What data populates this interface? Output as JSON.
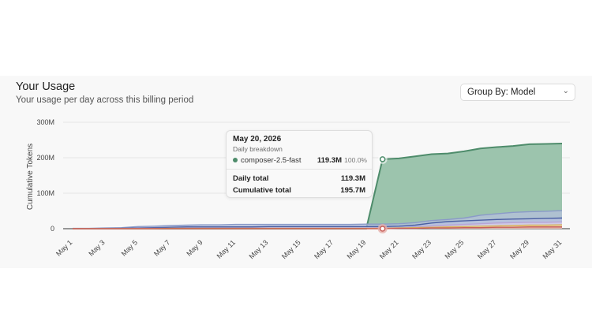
{
  "header": {
    "title": "Your Usage",
    "subtitle": "Your usage per day across this billing period"
  },
  "group_by": {
    "label": "Group By: Model"
  },
  "tooltip": {
    "date": "May 20, 2026",
    "subtitle": "Daily breakdown",
    "model": "composer-2.5-fast",
    "model_value": "119.3M",
    "model_pct": "100.0%",
    "daily_total_label": "Daily total",
    "daily_total_value": "119.3M",
    "cumulative_total_label": "Cumulative total",
    "cumulative_total_value": "195.7M"
  },
  "colors": {
    "composer": "#4e8c6b",
    "composer_fill": "#9cc4ad",
    "grid": "#e6e6e6"
  },
  "chart_data": {
    "type": "area",
    "title": "",
    "ylabel": "Cumulative Tokens",
    "xlabel": "",
    "ylim": [
      0,
      300
    ],
    "y_ticks": [
      0,
      100,
      200,
      300
    ],
    "y_tick_labels": [
      "0",
      "100M",
      "200M",
      "300M"
    ],
    "categories": [
      "May 1",
      "May 2",
      "May 3",
      "May 4",
      "May 5",
      "May 6",
      "May 7",
      "May 8",
      "May 9",
      "May 10",
      "May 11",
      "May 12",
      "May 13",
      "May 14",
      "May 15",
      "May 16",
      "May 17",
      "May 18",
      "May 19",
      "May 20",
      "May 21",
      "May 22",
      "May 23",
      "May 24",
      "May 25",
      "May 26",
      "May 27",
      "May 28",
      "May 29",
      "May 30",
      "May 31"
    ],
    "x_tick_labels": [
      "May 1",
      "May 3",
      "May 5",
      "May 7",
      "May 9",
      "May 11",
      "May 13",
      "May 15",
      "May 17",
      "May 19",
      "May 21",
      "May 23",
      "May 25",
      "May 27",
      "May 29",
      "May 31"
    ],
    "highlight_index": 19,
    "series": [
      {
        "name": "composer-2.5-fast",
        "color": "#4e8c6b",
        "fill": "#9cc4ad",
        "values": [
          0,
          0,
          0,
          0,
          0,
          0,
          0,
          0,
          0,
          0,
          0,
          0,
          0,
          0,
          0,
          0,
          0,
          0,
          0,
          195.7,
          198,
          204,
          210,
          212,
          218,
          226,
          230,
          233,
          238,
          239,
          240
        ]
      },
      {
        "values": [
          1,
          1,
          2,
          3,
          6,
          7,
          9,
          10,
          11,
          11,
          12,
          12,
          12,
          12,
          12,
          12,
          12,
          12,
          13,
          13,
          14,
          17,
          23,
          26,
          30,
          38,
          42,
          46,
          48,
          49,
          51
        ],
        "color": "#8a9ac8",
        "fill": "#b5c0dd"
      },
      {
        "values": [
          0,
          0,
          0,
          1,
          2,
          3,
          4,
          5,
          5,
          5,
          5,
          5,
          6,
          6,
          6,
          6,
          6,
          6,
          6,
          6,
          7,
          10,
          16,
          20,
          22,
          24,
          26,
          27,
          28,
          29,
          30
        ],
        "color": "#4a5fa3",
        "fill": "#b9c1e0"
      },
      {
        "values": [
          0,
          0,
          0,
          0,
          1,
          1,
          1,
          2,
          2,
          2,
          2,
          2,
          2,
          2,
          2,
          2,
          2,
          2,
          2,
          3,
          3,
          5,
          8,
          10,
          12,
          14,
          16,
          17,
          18,
          18,
          19
        ],
        "color": "#b7a4d6",
        "fill": "#d7cdea"
      },
      {
        "values": [
          0,
          0,
          0,
          0,
          0,
          0,
          1,
          1,
          1,
          1,
          1,
          1,
          1,
          1,
          1,
          1,
          1,
          1,
          1,
          1,
          2,
          3,
          4,
          5,
          6,
          7,
          8,
          9,
          10,
          10,
          11
        ],
        "color": "#d9b15a",
        "fill": "#ecd7a6"
      },
      {
        "values": [
          0,
          0,
          0,
          0,
          0,
          0,
          0,
          0,
          0,
          0,
          0,
          0,
          0,
          0,
          0,
          0,
          0,
          0,
          0,
          0,
          1,
          1,
          2,
          2,
          3,
          3,
          4,
          4,
          5,
          5,
          5
        ],
        "color": "#c9605a",
        "fill": "#e6b0ab"
      }
    ]
  }
}
